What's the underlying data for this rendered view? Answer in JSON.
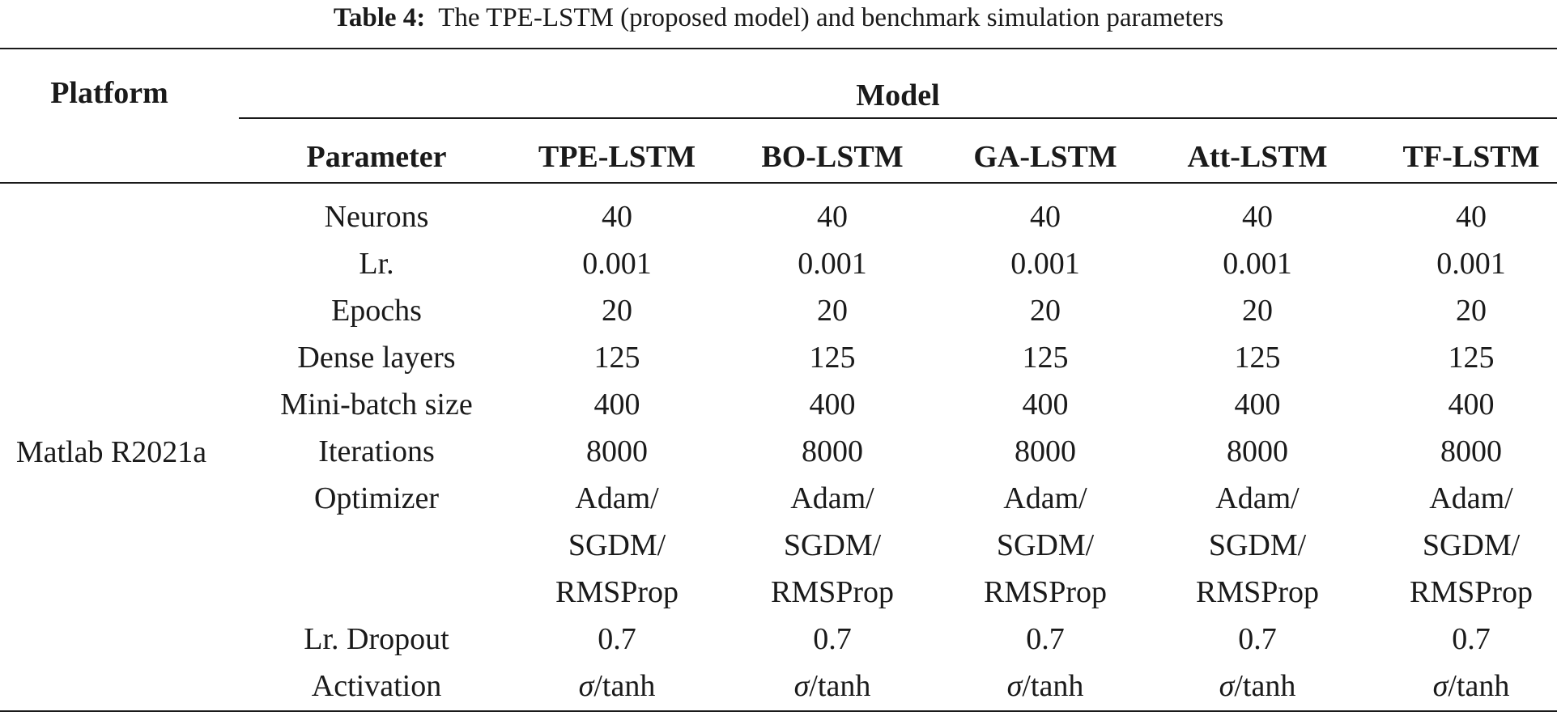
{
  "caption": {
    "label": "Table 4:",
    "text": "The TPE-LSTM (proposed model) and benchmark simulation parameters"
  },
  "header": {
    "platform": "Platform",
    "model": "Model",
    "columns": [
      "Parameter",
      "TPE-LSTM",
      "BO-LSTM",
      "GA-LSTM",
      "Att-LSTM",
      "TF-LSTM"
    ]
  },
  "platform_value": "Matlab R2021a",
  "rows": [
    {
      "param": "Neurons",
      "values": [
        "40",
        "40",
        "40",
        "40",
        "40"
      ]
    },
    {
      "param": "Lr.",
      "values": [
        "0.001",
        "0.001",
        "0.001",
        "0.001",
        "0.001"
      ]
    },
    {
      "param": "Epochs",
      "values": [
        "20",
        "20",
        "20",
        "20",
        "20"
      ]
    },
    {
      "param": "Dense layers",
      "values": [
        "125",
        "125",
        "125",
        "125",
        "125"
      ]
    },
    {
      "param": "Mini-batch size",
      "values": [
        "400",
        "400",
        "400",
        "400",
        "400"
      ]
    },
    {
      "param": "Iterations",
      "values": [
        "8000",
        "8000",
        "8000",
        "8000",
        "8000"
      ]
    },
    {
      "param": "Optimizer",
      "values": [
        "Adam/",
        "Adam/",
        "Adam/",
        "Adam/",
        "Adam/"
      ]
    },
    {
      "param": "",
      "values": [
        "SGDM/",
        "SGDM/",
        "SGDM/",
        "SGDM/",
        "SGDM/"
      ]
    },
    {
      "param": "",
      "values": [
        "RMSProp",
        "RMSProp",
        "RMSProp",
        "RMSProp",
        "RMSProp"
      ]
    },
    {
      "param": "Lr. Dropout",
      "values": [
        "0.7",
        "0.7",
        "0.7",
        "0.7",
        "0.7"
      ]
    },
    {
      "param": "Activation",
      "values": [
        "σ/tanh",
        "σ/tanh",
        "σ/tanh",
        "σ/tanh",
        "σ/tanh"
      ]
    }
  ]
}
